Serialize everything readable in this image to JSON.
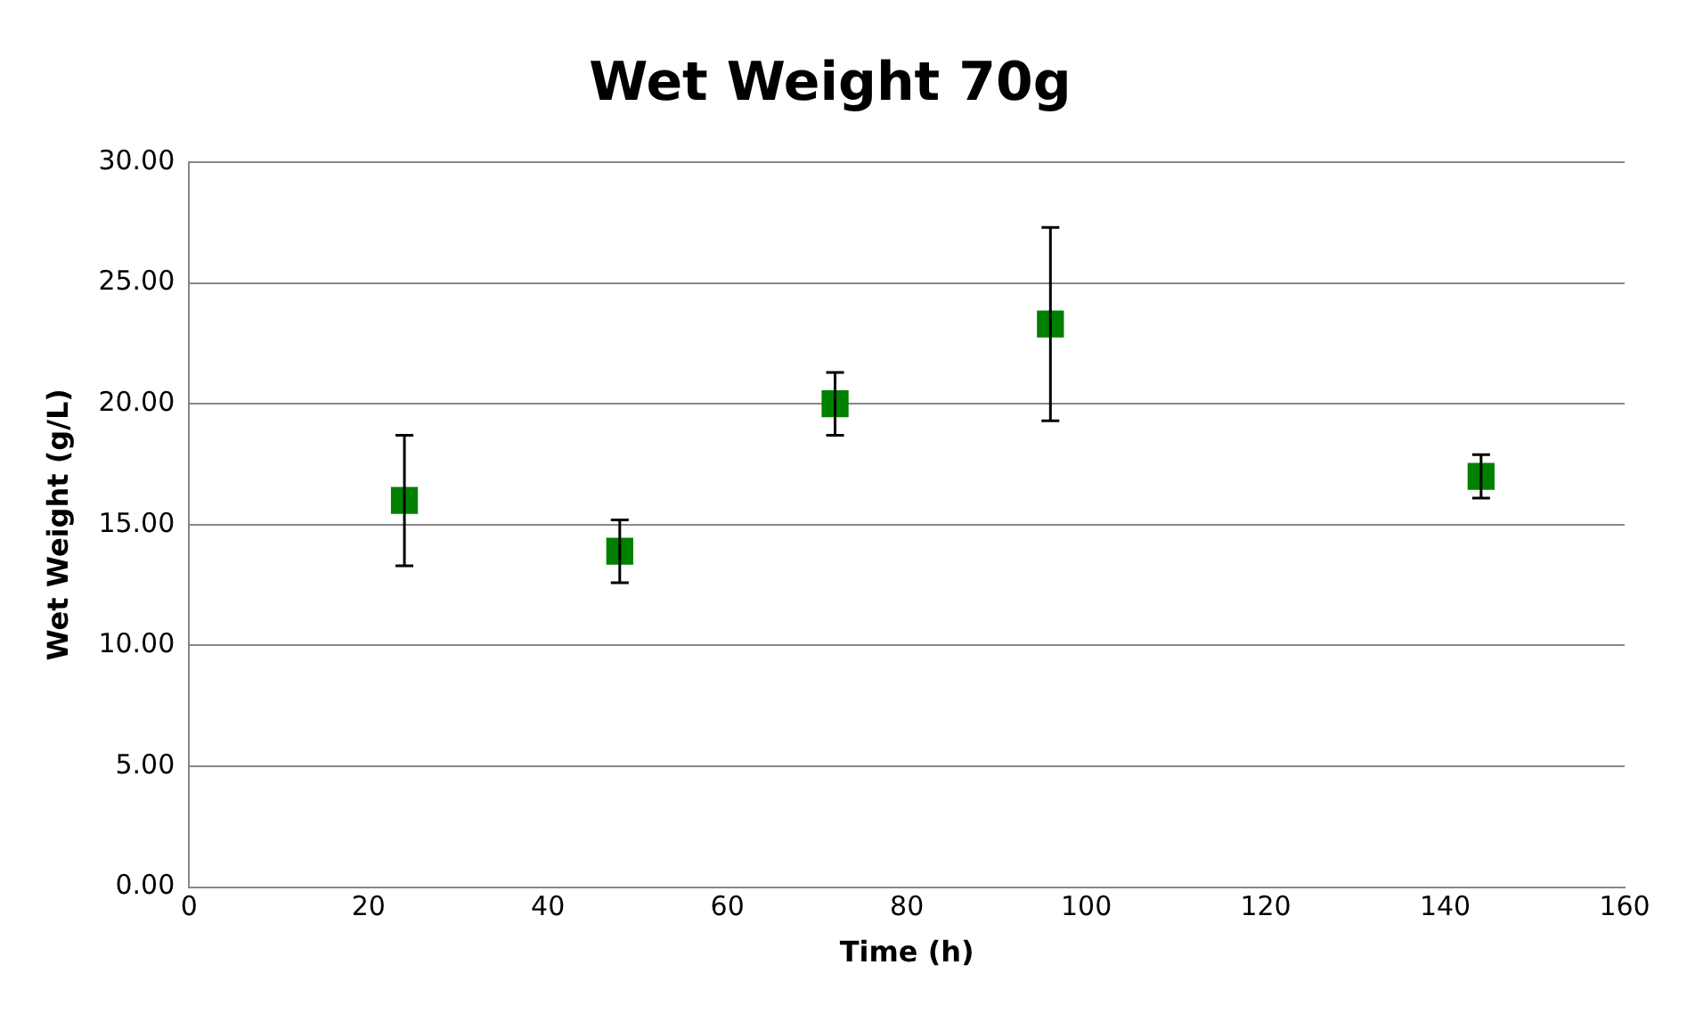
{
  "chart_data": {
    "type": "scatter",
    "title": "Wet Weight 70g",
    "xlabel": "Time (h)",
    "ylabel": "Wet Weight (g/L)",
    "x": [
      24,
      48,
      72,
      96,
      144
    ],
    "series": [
      {
        "color": "#008000",
        "values": [
          16.0,
          13.9,
          20.0,
          23.3,
          17.0
        ],
        "errors": [
          2.7,
          1.3,
          1.3,
          4.0,
          0.9
        ]
      }
    ],
    "xlim": [
      0,
      160
    ],
    "xticks": [
      0,
      20,
      40,
      60,
      80,
      100,
      120,
      140,
      160
    ],
    "ylim": [
      0,
      30
    ],
    "yticks": [
      {
        "value": 0,
        "label": "0.00"
      },
      {
        "value": 5,
        "label": "5.00"
      },
      {
        "value": 10,
        "label": "10.00"
      },
      {
        "value": 15,
        "label": "15.00"
      },
      {
        "value": 20,
        "label": "20.00"
      },
      {
        "value": 25,
        "label": "25.00"
      },
      {
        "value": 30,
        "label": "30.00"
      }
    ],
    "grid": "y",
    "legend": false,
    "marker": "square"
  }
}
